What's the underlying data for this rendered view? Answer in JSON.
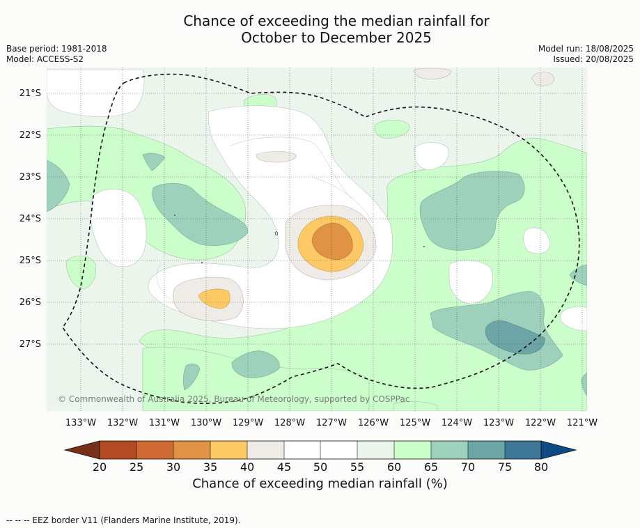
{
  "title": {
    "line1": "Chance of exceeding the median rainfall for",
    "line2": "October to December 2025"
  },
  "meta_left": {
    "base_period": "Base period: 1981-2018",
    "model": "Model: ACCESS-S2"
  },
  "meta_right": {
    "model_run": "Model run: 18/08/2025",
    "issued": "Issued: 20/08/2025"
  },
  "map": {
    "lat_labels": [
      "21°S",
      "22°S",
      "23°S",
      "24°S",
      "25°S",
      "26°S",
      "27°S"
    ],
    "lon_labels": [
      "133°W",
      "132°W",
      "131°W",
      "130°W",
      "129°W",
      "128°W",
      "127°W",
      "126°W",
      "125°W",
      "124°W",
      "123°W",
      "122°W",
      "121°W"
    ],
    "copyright": "© Commonwealth of Australia 2025, Bureau of Meteorology, supported by COSPPac",
    "colors": {
      "below_20": "#7a2f1b",
      "20_25": "#b24a22",
      "25_30": "#d06a35",
      "30_35": "#e09245",
      "35_40": "#fdc965",
      "40_45": "#efebe7",
      "45_55": "#ffffff",
      "55_60": "#ecf5ec",
      "60_65": "#ccfecc",
      "65_70": "#9ed1bb",
      "70_75": "#6da4a6",
      "75_80": "#3e7798",
      "above_80": "#0f4a86"
    }
  },
  "colorbar": {
    "ticks": [
      "20",
      "25",
      "30",
      "35",
      "40",
      "45",
      "50",
      "55",
      "60",
      "65",
      "70",
      "75",
      "80"
    ],
    "label": "Chance of exceeding median rainfall (%)"
  },
  "footnote": "--  --  -- EEZ border V11 (Flanders Marine Institute, 2019)."
}
